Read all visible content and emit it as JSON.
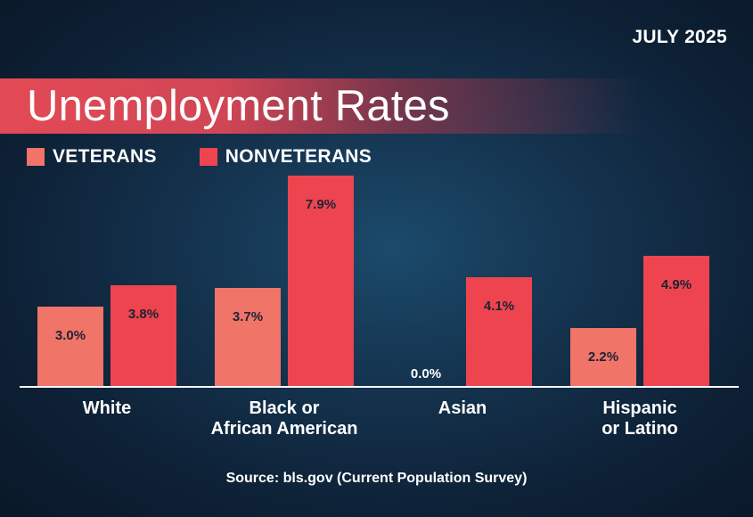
{
  "header": {
    "date_label": "JULY 2025",
    "title": "Unemployment Rates"
  },
  "colors": {
    "veterans": "#f07468",
    "nonveterans": "#ee4450",
    "axis": "#ffffff",
    "value_text": "#1c2433"
  },
  "footer": {
    "source": "Source: bls.gov (Current Population Survey)"
  },
  "chart_data": {
    "type": "bar",
    "title": "Unemployment Rates",
    "subtitle": "JULY 2025",
    "xlabel": "",
    "ylabel": "",
    "ylim": [
      0,
      8.0
    ],
    "grid": false,
    "legend": "top-left",
    "categories": [
      [
        "White"
      ],
      [
        "Black or",
        "African American"
      ],
      [
        "Asian"
      ],
      [
        "Hispanic",
        "or Latino"
      ]
    ],
    "series": [
      {
        "name": "VETERANS",
        "values": [
          3.0,
          3.7,
          0.0,
          2.2
        ],
        "labels": [
          "3.0%",
          "3.7%",
          "0.0%",
          "2.2%"
        ]
      },
      {
        "name": "NONVETERANS",
        "values": [
          3.8,
          7.9,
          4.1,
          4.9
        ],
        "labels": [
          "3.8%",
          "7.9%",
          "4.1%",
          "4.9%"
        ]
      }
    ]
  }
}
